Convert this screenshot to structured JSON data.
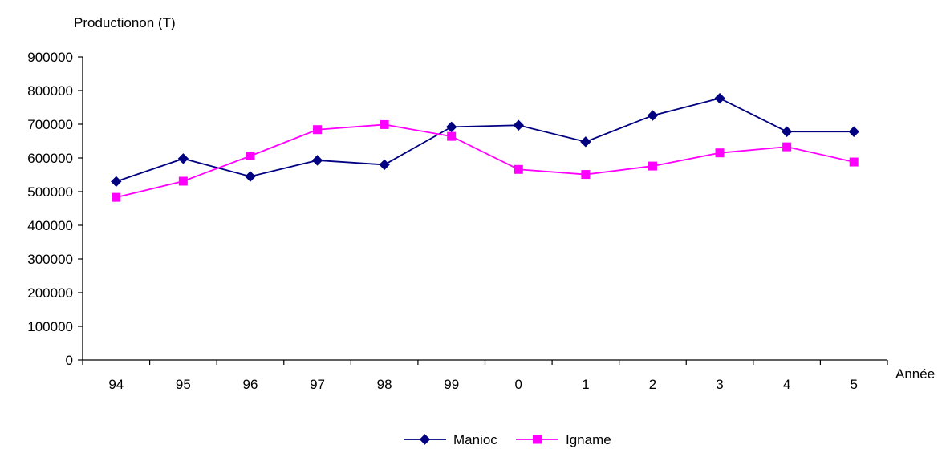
{
  "chart_data": {
    "type": "line",
    "title": "",
    "ylabel": "Productionon (T)",
    "xlabel": "Année",
    "categories": [
      "94",
      "95",
      "96",
      "97",
      "98",
      "99",
      "0",
      "1",
      "2",
      "3",
      "4",
      "5"
    ],
    "ylim": [
      0,
      900000
    ],
    "yticks": [
      "0",
      "100000",
      "200000",
      "300000",
      "400000",
      "500000",
      "600000",
      "700000",
      "800000",
      "900000"
    ],
    "grid": false,
    "legend_position": "bottom",
    "series": [
      {
        "name": "Manioc",
        "color": "#000080",
        "marker": "diamond",
        "values": [
          530000,
          598000,
          545000,
          593000,
          580000,
          692000,
          697000,
          648000,
          726000,
          777000,
          678000,
          678000
        ]
      },
      {
        "name": "Igname",
        "color": "#ff00ff",
        "marker": "square",
        "values": [
          483000,
          531000,
          606000,
          684000,
          699000,
          664000,
          566000,
          551000,
          576000,
          615000,
          633000,
          588000
        ]
      }
    ]
  }
}
